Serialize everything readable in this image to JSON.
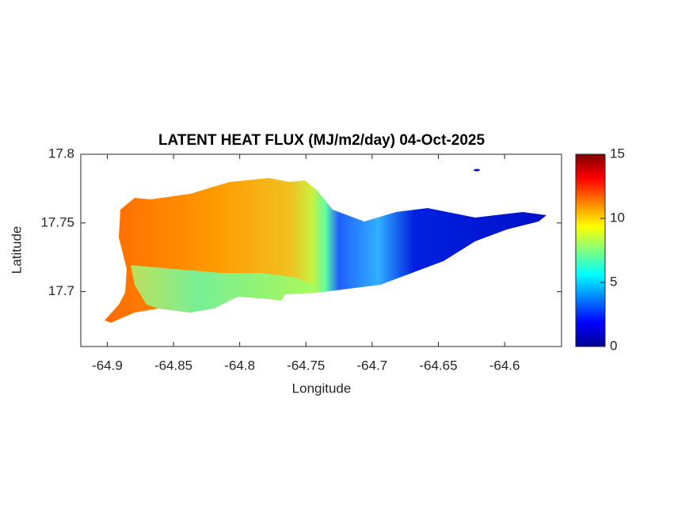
{
  "chart_data": {
    "type": "map",
    "title": "LATENT HEAT FLUX (MJ/m2/day) 04-Oct-2025",
    "x_label": "Longitude",
    "y_label": "Latitude",
    "xlim": [
      -64.92,
      -64.557
    ],
    "xticks": [
      -64.9,
      -64.85,
      -64.8,
      -64.75,
      -64.7,
      -64.65,
      -64.6
    ],
    "ylim": [
      17.66,
      17.8
    ],
    "yticks": [
      17.7,
      17.75,
      17.8
    ],
    "clim": [
      0,
      15
    ],
    "cticks": [
      0,
      5,
      10,
      15
    ],
    "colormap": [
      "#00008f",
      "#0000ff",
      "#0080ff",
      "#00ffff",
      "#80ff80",
      "#ffff00",
      "#ff8000",
      "#ff0000",
      "#800000"
    ]
  }
}
